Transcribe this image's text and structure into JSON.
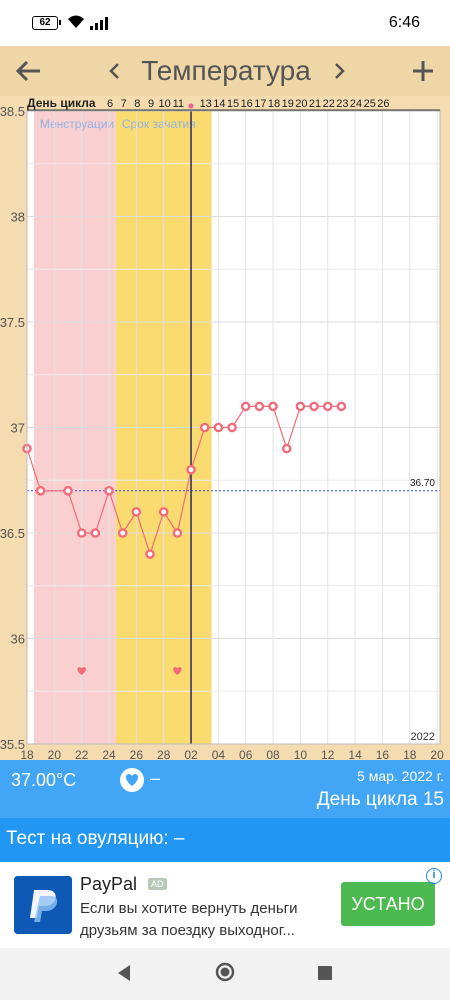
{
  "status_bar": {
    "battery": "62",
    "time": "6:46",
    "icons": [
      "wifi-icon",
      "signal-icon"
    ]
  },
  "header": {
    "title": "Температура",
    "back_icon": "arrow-left-icon",
    "prev_icon": "chevron-left-icon",
    "next_icon": "chevron-right-icon",
    "add_icon": "plus-icon"
  },
  "chart_data": {
    "type": "line",
    "title": "",
    "top_label": "День цикла",
    "cycle_day_labels": [
      "6",
      "7",
      "8",
      "9",
      "10",
      "11",
      "",
      "13",
      "14",
      "15",
      "16",
      "17",
      "18",
      "19",
      "20",
      "21",
      "22",
      "23",
      "24",
      "25",
      "26"
    ],
    "x_tick_labels": [
      "18",
      "20",
      "22",
      "24",
      "26",
      "28",
      "02",
      "04",
      "06",
      "08",
      "10",
      "12",
      "14",
      "16",
      "18",
      "20"
    ],
    "x": [
      "2022-02-18",
      "2022-02-19",
      "2022-02-20",
      "2022-02-21",
      "2022-02-22",
      "2022-02-23",
      "2022-02-24",
      "2022-02-25",
      "2022-02-26",
      "2022-02-27",
      "2022-02-28",
      "2022-03-01",
      "2022-03-02",
      "2022-03-03",
      "2022-03-04",
      "2022-03-05",
      "2022-03-06",
      "2022-03-07",
      "2022-03-08",
      "2022-03-09",
      "2022-03-10",
      "2022-03-11",
      "2022-03-12",
      "2022-03-13"
    ],
    "series": [
      {
        "values": [
          36.9,
          36.7,
          null,
          36.7,
          36.5,
          36.5,
          36.7,
          36.5,
          36.6,
          36.4,
          36.6,
          36.5,
          36.8,
          37.0,
          37.0,
          37.0,
          37.1,
          37.1,
          37.1,
          36.9,
          37.1,
          37.1,
          37.1,
          37.1
        ],
        "color": "#f36b7a"
      }
    ],
    "y_tick_labels": [
      "38.5",
      "38",
      "37.5",
      "37",
      "36.5",
      "36",
      "35.5"
    ],
    "ylim": [
      35.5,
      38.5
    ],
    "coverline": {
      "value": 36.7,
      "label": "36.70",
      "color": "#2b4fd8"
    },
    "bands": [
      {
        "label": "Менструации",
        "start": "2022-02-19",
        "end": "2022-02-24",
        "color": "#f9cfcf"
      },
      {
        "label": "Срок зачатия",
        "start": "2022-02-25",
        "end": "2022-03-03",
        "color": "#f9db6f"
      }
    ],
    "today": "2022-03-02",
    "hearts": [
      "2022-02-22",
      "2022-03-01"
    ],
    "year_label": "2022",
    "grid": true
  },
  "info": {
    "temperature": "37.00°C",
    "heart_icon": "heart-icon",
    "dash": "–",
    "date": "5 мар. 2022 г.",
    "cycle_day": "День цикла 15"
  },
  "ovulation": {
    "text": "Тест на овуляцию: –"
  },
  "ad": {
    "title": "PayPal",
    "badge": "AD",
    "line1": "Если вы хотите вернуть деньги",
    "line2": "друзьям за поездку выходног...",
    "cta": "УСТАНО",
    "info_icon": "info-icon",
    "logo": "paypal-logo-icon"
  },
  "nav": {
    "back": "nav-back-icon",
    "home": "nav-home-icon",
    "recents": "nav-recents-icon"
  }
}
